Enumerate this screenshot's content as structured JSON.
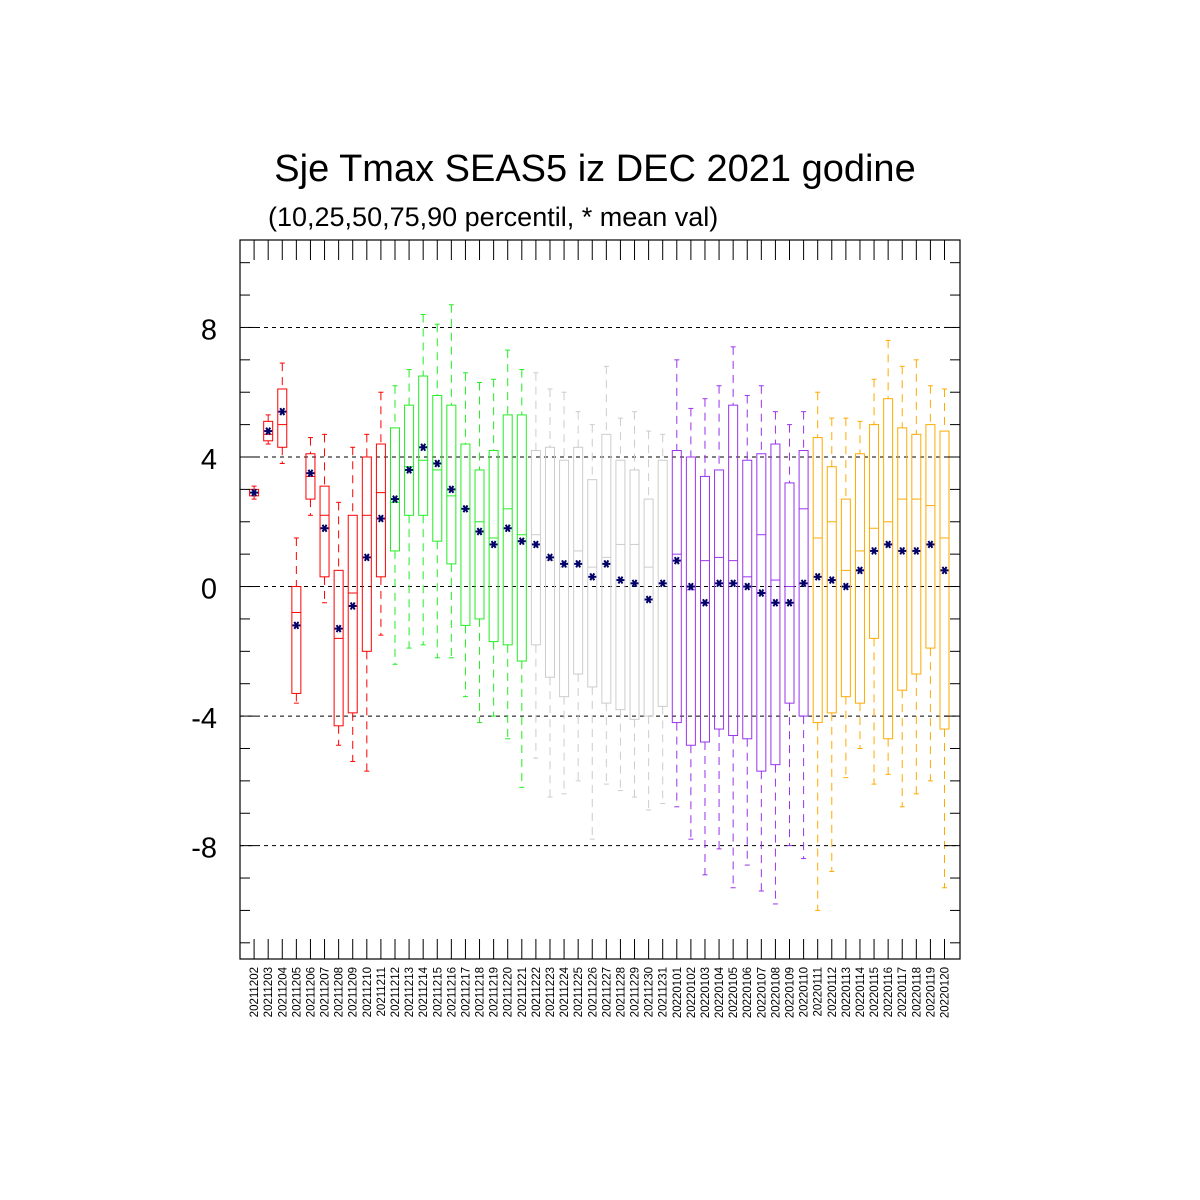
{
  "chart_data": {
    "type": "box",
    "title": "Sje Tmax SEAS5 iz DEC 2021 godine",
    "subtitle": "(10,25,50,75,90 percentil, * mean val)",
    "xlabel": "",
    "ylabel": "",
    "ylim": [
      -11.5,
      10.7
    ],
    "yticks": [
      -8,
      -4,
      0,
      4,
      8
    ],
    "ytick_labels": [
      "-8",
      "-4",
      "0",
      "4",
      "8"
    ],
    "grid": "horizontal dashed at major ticks",
    "legend": "none",
    "mean_marker": "*",
    "mean_color": "#000066",
    "colors": {
      "red": "#ff0000",
      "green": "#22ee22",
      "gray": "#cccccc",
      "purple": "#9933ee",
      "orange": "#ffaa00"
    },
    "categories": [
      "20211202",
      "20211203",
      "20211204",
      "20211205",
      "20211206",
      "20211207",
      "20211208",
      "20211209",
      "20211210",
      "20211211",
      "20211212",
      "20211213",
      "20211214",
      "20211215",
      "20211216",
      "20211217",
      "20211218",
      "20211219",
      "20211220",
      "20211221",
      "20211222",
      "20211223",
      "20211224",
      "20211225",
      "20211226",
      "20211227",
      "20211228",
      "20211229",
      "20211230",
      "20211231",
      "20220101",
      "20220102",
      "20220103",
      "20220104",
      "20220105",
      "20220106",
      "20220107",
      "20220108",
      "20220109",
      "20220110",
      "20220111",
      "20220112",
      "20220113",
      "20220114",
      "20220115",
      "20220116",
      "20220117",
      "20220118",
      "20220119",
      "20220120"
    ],
    "color_groups": [
      "red",
      "red",
      "red",
      "red",
      "red",
      "red",
      "red",
      "red",
      "red",
      "red",
      "green",
      "green",
      "green",
      "green",
      "green",
      "green",
      "green",
      "green",
      "green",
      "green",
      "gray",
      "gray",
      "gray",
      "gray",
      "gray",
      "gray",
      "gray",
      "gray",
      "gray",
      "gray",
      "purple",
      "purple",
      "purple",
      "purple",
      "purple",
      "purple",
      "purple",
      "purple",
      "purple",
      "purple",
      "orange",
      "orange",
      "orange",
      "orange",
      "orange",
      "orange",
      "orange",
      "orange",
      "orange",
      "orange"
    ],
    "p10": [
      2.7,
      4.4,
      3.8,
      -3.6,
      2.2,
      -0.5,
      -4.9,
      -5.4,
      -5.7,
      -1.5,
      -2.4,
      -1.9,
      -1.8,
      -2.2,
      -2.2,
      -3.4,
      -4.2,
      -4.0,
      -4.7,
      -6.2,
      -5.3,
      -6.5,
      -6.4,
      -6.0,
      -7.8,
      -6.1,
      -6.3,
      -6.5,
      -6.9,
      -6.7,
      -6.8,
      -7.8,
      -8.9,
      -8.1,
      -9.3,
      -8.6,
      -9.4,
      -9.8,
      -8.0,
      -8.4,
      -10.0,
      -8.8,
      -5.9,
      -5.0,
      -6.1,
      -5.8,
      -6.8,
      -6.4,
      -6.0,
      -9.3
    ],
    "p25": [
      2.8,
      4.5,
      4.3,
      -3.3,
      2.7,
      0.3,
      -4.3,
      -3.9,
      -2.0,
      0.3,
      1.1,
      2.2,
      2.2,
      1.4,
      0.7,
      -1.2,
      -1.0,
      -1.7,
      -1.8,
      -2.3,
      -1.8,
      -2.8,
      -3.4,
      -2.7,
      -3.1,
      -3.6,
      -3.8,
      -4.1,
      -4.0,
      -3.7,
      -4.2,
      -4.9,
      -4.8,
      -4.4,
      -4.6,
      -4.7,
      -5.7,
      -5.5,
      -3.6,
      -4.0,
      -4.2,
      -3.9,
      -3.4,
      -3.6,
      -1.6,
      -4.7,
      -3.2,
      -2.7,
      -1.9,
      -4.4
    ],
    "p50": [
      2.9,
      4.7,
      5.0,
      -0.8,
      3.4,
      2.2,
      -1.6,
      -0.2,
      2.2,
      2.9,
      2.6,
      3.7,
      3.9,
      3.6,
      2.8,
      2.4,
      2.0,
      1.5,
      2.4,
      1.6,
      1.6,
      0.8,
      0.6,
      1.1,
      0.6,
      0.9,
      1.3,
      1.3,
      0.6,
      0.1,
      1.0,
      -0.1,
      0.8,
      0.9,
      0.8,
      0.3,
      1.6,
      0.2,
      0.0,
      2.4,
      1.5,
      2.0,
      0.5,
      1.1,
      1.8,
      2.0,
      2.7,
      2.7,
      2.5,
      1.5
    ],
    "p75": [
      3.0,
      5.1,
      6.1,
      0.0,
      4.1,
      3.1,
      0.5,
      2.2,
      4.0,
      4.4,
      4.9,
      5.6,
      6.5,
      5.9,
      5.6,
      4.4,
      3.6,
      4.2,
      5.3,
      5.3,
      4.2,
      4.3,
      3.9,
      4.3,
      3.3,
      4.7,
      3.9,
      3.6,
      2.7,
      3.9,
      4.2,
      4.0,
      3.4,
      3.6,
      5.6,
      3.9,
      4.1,
      4.4,
      3.2,
      4.2,
      4.6,
      3.7,
      2.7,
      4.1,
      5.0,
      5.8,
      4.9,
      4.7,
      5.0,
      4.8
    ],
    "p90": [
      3.1,
      5.3,
      6.9,
      1.5,
      4.6,
      4.7,
      2.6,
      4.3,
      4.7,
      6.0,
      6.2,
      6.7,
      8.4,
      8.1,
      8.7,
      6.6,
      6.3,
      6.4,
      7.3,
      6.7,
      6.6,
      6.1,
      6.0,
      5.4,
      5.0,
      6.8,
      5.2,
      5.4,
      4.8,
      4.7,
      7.0,
      5.5,
      5.8,
      6.2,
      7.4,
      5.9,
      6.2,
      5.4,
      5.0,
      5.4,
      6.0,
      5.2,
      5.2,
      5.1,
      6.4,
      7.6,
      6.8,
      7.0,
      6.2,
      6.1
    ],
    "mean": [
      2.9,
      4.8,
      5.4,
      -1.2,
      3.5,
      1.8,
      -1.3,
      -0.6,
      0.9,
      2.1,
      2.7,
      3.6,
      4.3,
      3.8,
      3.0,
      2.4,
      1.7,
      1.3,
      1.8,
      1.4,
      1.3,
      0.9,
      0.7,
      0.7,
      0.3,
      0.7,
      0.2,
      0.1,
      -0.4,
      0.1,
      0.8,
      0.0,
      -0.5,
      0.1,
      0.1,
      0.0,
      -0.2,
      -0.5,
      -0.5,
      0.1,
      0.3,
      0.2,
      0.0,
      0.5,
      1.1,
      1.3,
      1.1,
      1.1,
      1.3,
      0.5
    ]
  }
}
